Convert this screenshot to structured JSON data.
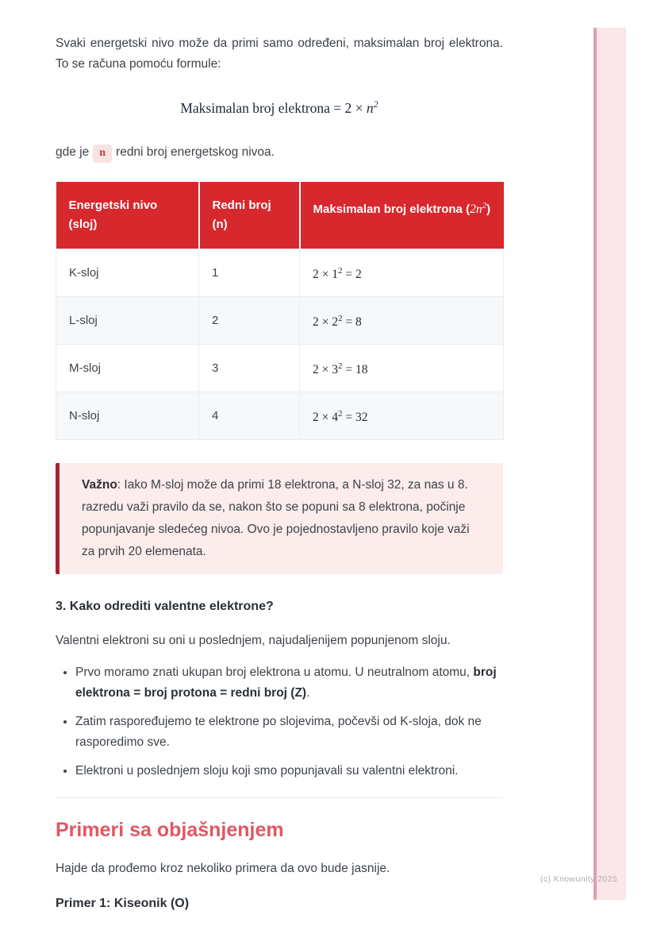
{
  "colors": {
    "table_header_bg": "#d7282d",
    "callout_bg": "#fcecec",
    "callout_border": "#a82332",
    "section_heading_red": "#e25663",
    "badge_bg": "#f9e2e2",
    "badge_text": "#c0392b",
    "stripe_fill": "#fbe6e9",
    "stripe_edge": "#dfa0a9"
  },
  "intro": {
    "paragraph": "Svaki energetski nivo može da primi samo određeni, maksimalan broj elektrona. To se računa pomoću formule:",
    "formula_text": "Maksimalan broj elektrona = 2 × ",
    "formula_var": "n",
    "formula_sup": "2",
    "gde_prefix": "gde je",
    "badge": "n",
    "gde_suffix": "redni broj energetskog nivoa."
  },
  "table": {
    "headers": {
      "col1_line1": "Energetski nivo",
      "col1_line2": "(sloj)",
      "col2_line1": "Redni broj",
      "col2_line2": "(n)",
      "col3_text": "Maksimalan broj elektrona (",
      "col3_math": "2n",
      "col3_sup": "2",
      "col3_close": ")"
    },
    "rows": [
      {
        "sloj": "K-sloj",
        "n": "1",
        "f_pre": "2 × 1",
        "f_sup": "2",
        "f_post": " = 2"
      },
      {
        "sloj": "L-sloj",
        "n": "2",
        "f_pre": "2 × 2",
        "f_sup": "2",
        "f_post": " = 8"
      },
      {
        "sloj": "M-sloj",
        "n": "3",
        "f_pre": "2 × 3",
        "f_sup": "2",
        "f_post": " = 18"
      },
      {
        "sloj": "N-sloj",
        "n": "4",
        "f_pre": "2 × 4",
        "f_sup": "2",
        "f_post": " = 32"
      }
    ]
  },
  "callout": {
    "label": "Važno",
    "separator": ": ",
    "text": "Iako M-sloj može da primi 18 elektrona, a N-sloj 32, za nas u 8. razredu važi pravilo da se, nakon što se popuni sa 8 elektrona, počinje popunjavanje sledećeg nivoa. Ovo je pojednostavljeno pravilo koje važi za prvih 20 elemenata."
  },
  "section3": {
    "heading": "3. Kako odrediti valentne elektrone?",
    "paragraph": "Valentni elektroni su oni u poslednjem, najudaljenijem popunjenom sloju.",
    "bullets": {
      "item1_text": "Prvo moramo znati ukupan broj elektrona u atomu. U neutralnom atomu, ",
      "item1_bold": "broj elektrona = broj protona = redni broj (Z)",
      "item1_end": ".",
      "item2_text": "Zatim raspoređujemo te elektrone po slojevima, počevši od K-sloja, dok ne rasporedimo sve.",
      "item3_text": "Elektroni u poslednjem sloju koji smo popunjavali su valentni elektroni."
    }
  },
  "examples": {
    "heading": "Primeri sa objašnjenjem",
    "intro": "Hajde da prođemo kroz nekoliko primera da ovo bude jasnije.",
    "example1_title": "Primer 1: Kiseonik (O)"
  },
  "footer": {
    "copyright": "(c) Knowunity 2025"
  }
}
